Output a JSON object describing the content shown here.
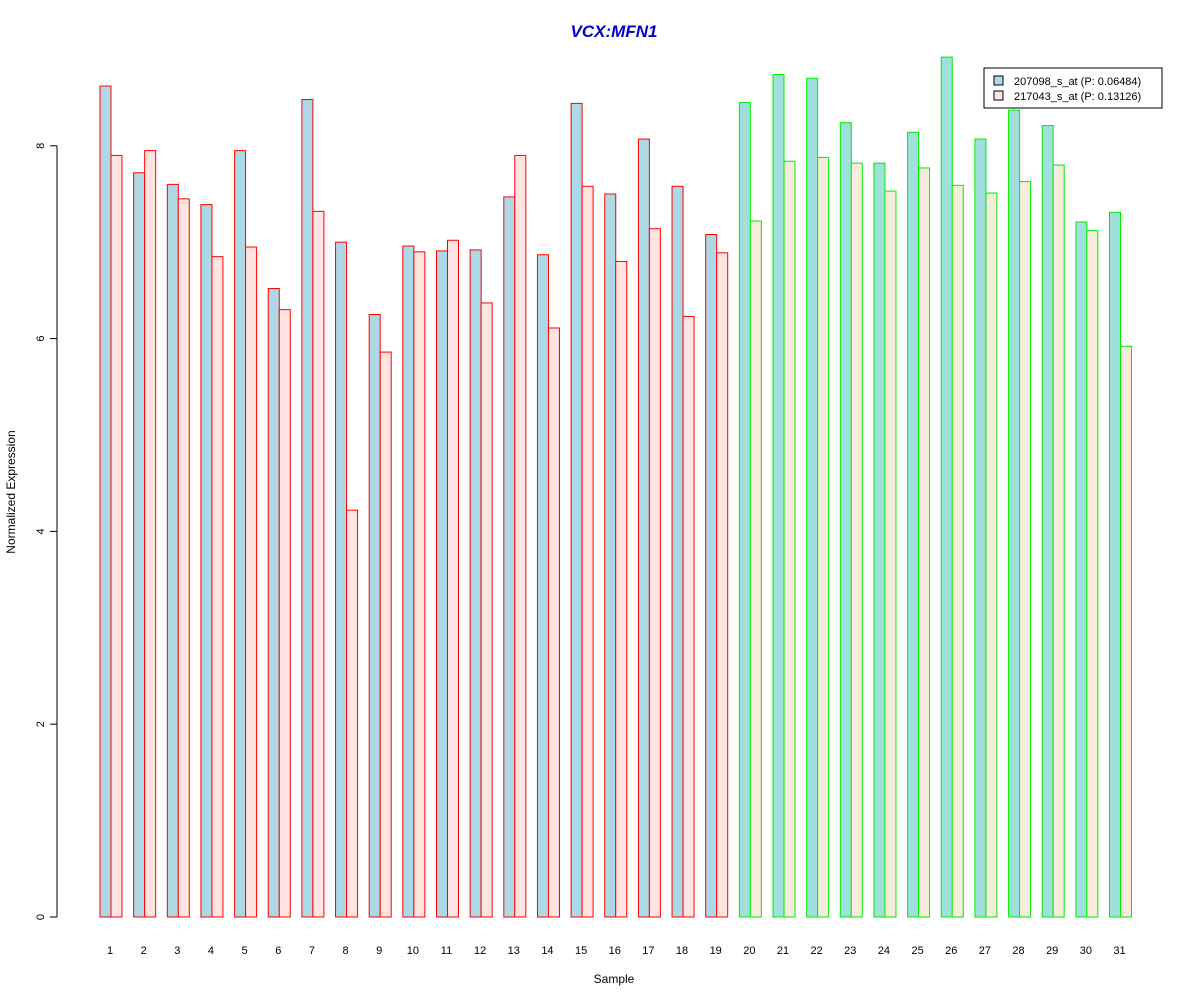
{
  "chart_data": {
    "type": "bar",
    "title": "VCX:MFN1",
    "xlabel": "Sample",
    "ylabel": "Normalized Expression",
    "ylim": [
      0,
      9.0
    ],
    "yticks": [
      0,
      2,
      4,
      6,
      8
    ],
    "categories": [
      "1",
      "2",
      "3",
      "4",
      "5",
      "6",
      "7",
      "8",
      "9",
      "10",
      "11",
      "12",
      "13",
      "14",
      "15",
      "16",
      "17",
      "18",
      "19",
      "20",
      "21",
      "22",
      "23",
      "24",
      "25",
      "26",
      "27",
      "28",
      "29",
      "30",
      "31"
    ],
    "series": [
      {
        "name": "207098_s_at (P: 0.06484)",
        "values": [
          8.62,
          7.72,
          7.6,
          7.39,
          7.95,
          6.52,
          8.48,
          7.0,
          6.25,
          6.96,
          6.91,
          6.92,
          7.47,
          6.87,
          8.44,
          7.5,
          8.07,
          7.58,
          7.08,
          8.45,
          8.74,
          8.7,
          8.24,
          7.82,
          8.14,
          8.92,
          8.07,
          8.37,
          8.21,
          7.21,
          7.31
        ]
      },
      {
        "name": "217043_s_at (P: 0.13126)",
        "values": [
          7.9,
          7.95,
          7.45,
          6.85,
          6.95,
          6.3,
          7.32,
          4.22,
          5.86,
          6.9,
          7.02,
          6.37,
          7.9,
          6.11,
          7.58,
          6.8,
          7.14,
          6.23,
          6.89,
          7.22,
          7.84,
          7.88,
          7.82,
          7.53,
          7.77,
          7.59,
          7.51,
          7.63,
          7.8,
          7.12,
          5.92
        ]
      }
    ],
    "groups": [
      {
        "samples": "1-19",
        "outline": "#FF0000",
        "fill_series1": "#ADD8E6",
        "fill_series2": "#FFE4E1"
      },
      {
        "samples": "20-31",
        "outline": "#00EE00",
        "fill_series1": "#A0E0DC",
        "fill_series2": "#F5ECDC"
      }
    ],
    "legend": {
      "position": "top-right",
      "swatch_colors": [
        "#ADD8E6",
        "#FFE4E1"
      ],
      "swatch_border": "#000000"
    }
  }
}
